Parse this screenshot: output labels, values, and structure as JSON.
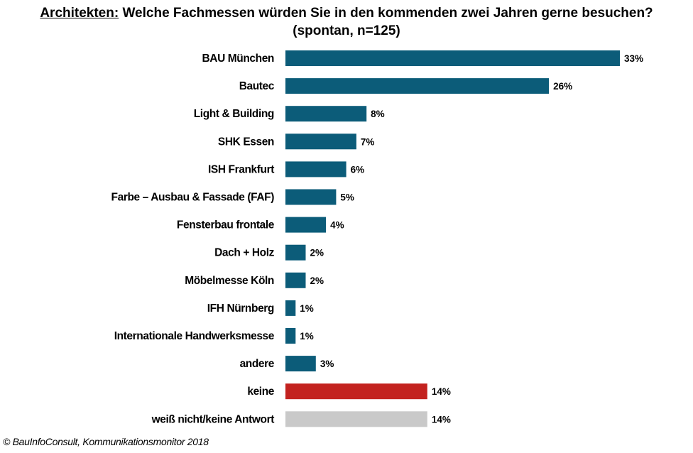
{
  "title": {
    "prefix": "Architekten:",
    "line1": " Welche Fachmessen würden Sie in den kommenden  zwei Jahren gerne besuchen?",
    "line2": "(spontan, n=125)"
  },
  "source": "© BauInfoConsult, Kommunikationsmonitor 2018",
  "colors": {
    "default": "#0c5c79",
    "keine": "#c3221f",
    "weiss_nicht": "#c9c9c9"
  },
  "chart_data": {
    "type": "bar",
    "orientation": "horizontal",
    "categories": [
      "BAU München",
      "Bautec",
      "Light & Building",
      "SHK Essen",
      "ISH Frankfurt",
      "Farbe – Ausbau & Fassade (FAF)",
      "Fensterbau frontale",
      "Dach + Holz",
      "Möbelmesse Köln",
      "IFH Nürnberg",
      "Internationale Handwerksmesse",
      "andere",
      "keine",
      "weiß nicht/keine Antwort"
    ],
    "values": [
      33,
      26,
      8,
      7,
      6,
      5,
      4,
      2,
      2,
      1,
      1,
      3,
      14,
      14
    ],
    "value_labels": [
      "33%",
      "26%",
      "8%",
      "7%",
      "6%",
      "5%",
      "4%",
      "2%",
      "2%",
      "1%",
      "1%",
      "3%",
      "14%",
      "14%"
    ],
    "bar_colors": [
      "#0c5c79",
      "#0c5c79",
      "#0c5c79",
      "#0c5c79",
      "#0c5c79",
      "#0c5c79",
      "#0c5c79",
      "#0c5c79",
      "#0c5c79",
      "#0c5c79",
      "#0c5c79",
      "#0c5c79",
      "#c3221f",
      "#c9c9c9"
    ],
    "unit": "%",
    "xlim": [
      0,
      33
    ],
    "grid": false,
    "legend": "none"
  }
}
